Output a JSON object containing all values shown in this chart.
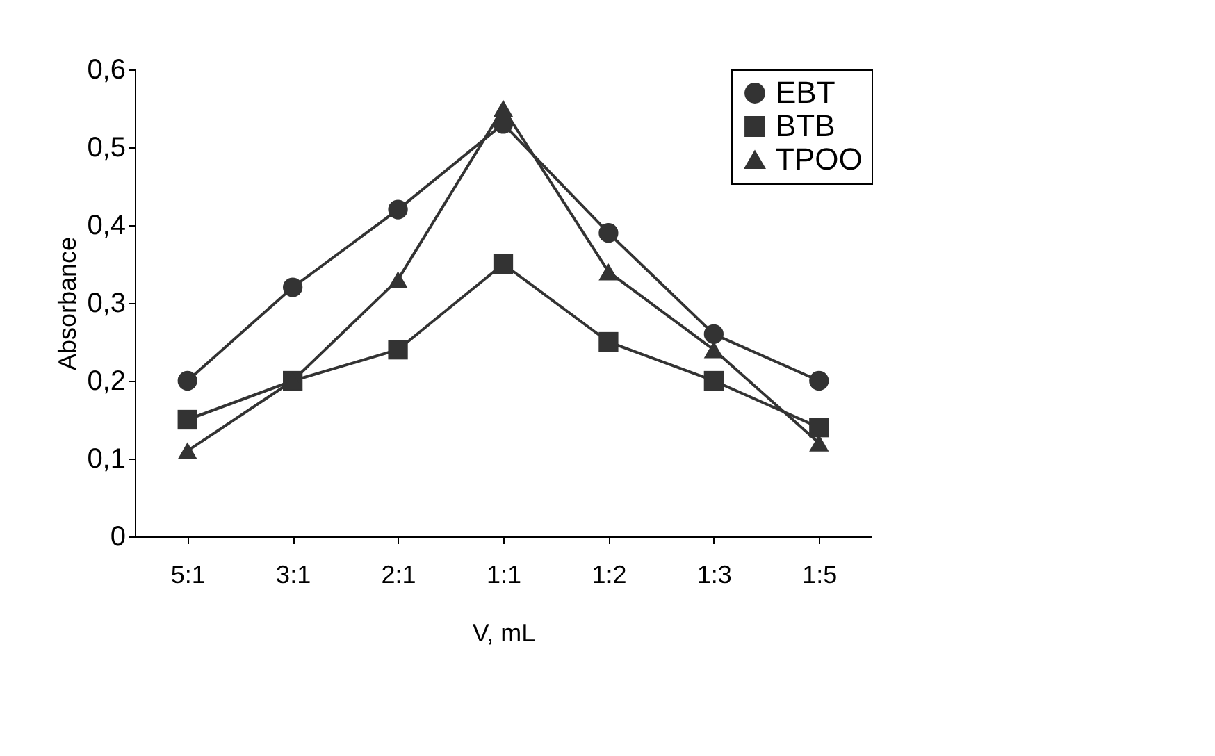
{
  "chart_data": {
    "type": "line",
    "xlabel": "V, mL",
    "ylabel": "Absorbance",
    "categories": [
      "5:1",
      "3:1",
      "2:1",
      "1:1",
      "1:2",
      "1:3",
      "1:5"
    ],
    "series": [
      {
        "name": "EBT",
        "color": "#333333",
        "marker": "circle",
        "values": [
          0.2,
          0.32,
          0.42,
          0.53,
          0.39,
          0.26,
          0.2
        ]
      },
      {
        "name": "BTB",
        "color": "#333333",
        "marker": "square",
        "values": [
          0.15,
          0.2,
          0.24,
          0.35,
          0.25,
          0.2,
          0.14
        ]
      },
      {
        "name": "TPOO",
        "color": "#333333",
        "marker": "triangle",
        "values": [
          0.11,
          0.2,
          0.33,
          0.55,
          0.34,
          0.24,
          0.12
        ]
      }
    ],
    "ylim": [
      0,
      0.6
    ],
    "yticks": [
      {
        "value": 0,
        "label": "0"
      },
      {
        "value": 0.1,
        "label": "0,1"
      },
      {
        "value": 0.2,
        "label": "0,2"
      },
      {
        "value": 0.3,
        "label": "0,3"
      },
      {
        "value": 0.4,
        "label": "0,4"
      },
      {
        "value": 0.5,
        "label": "0,5"
      },
      {
        "value": 0.6,
        "label": "0,6"
      }
    ],
    "grid": false,
    "legend": "top right",
    "line_style": "solid"
  }
}
